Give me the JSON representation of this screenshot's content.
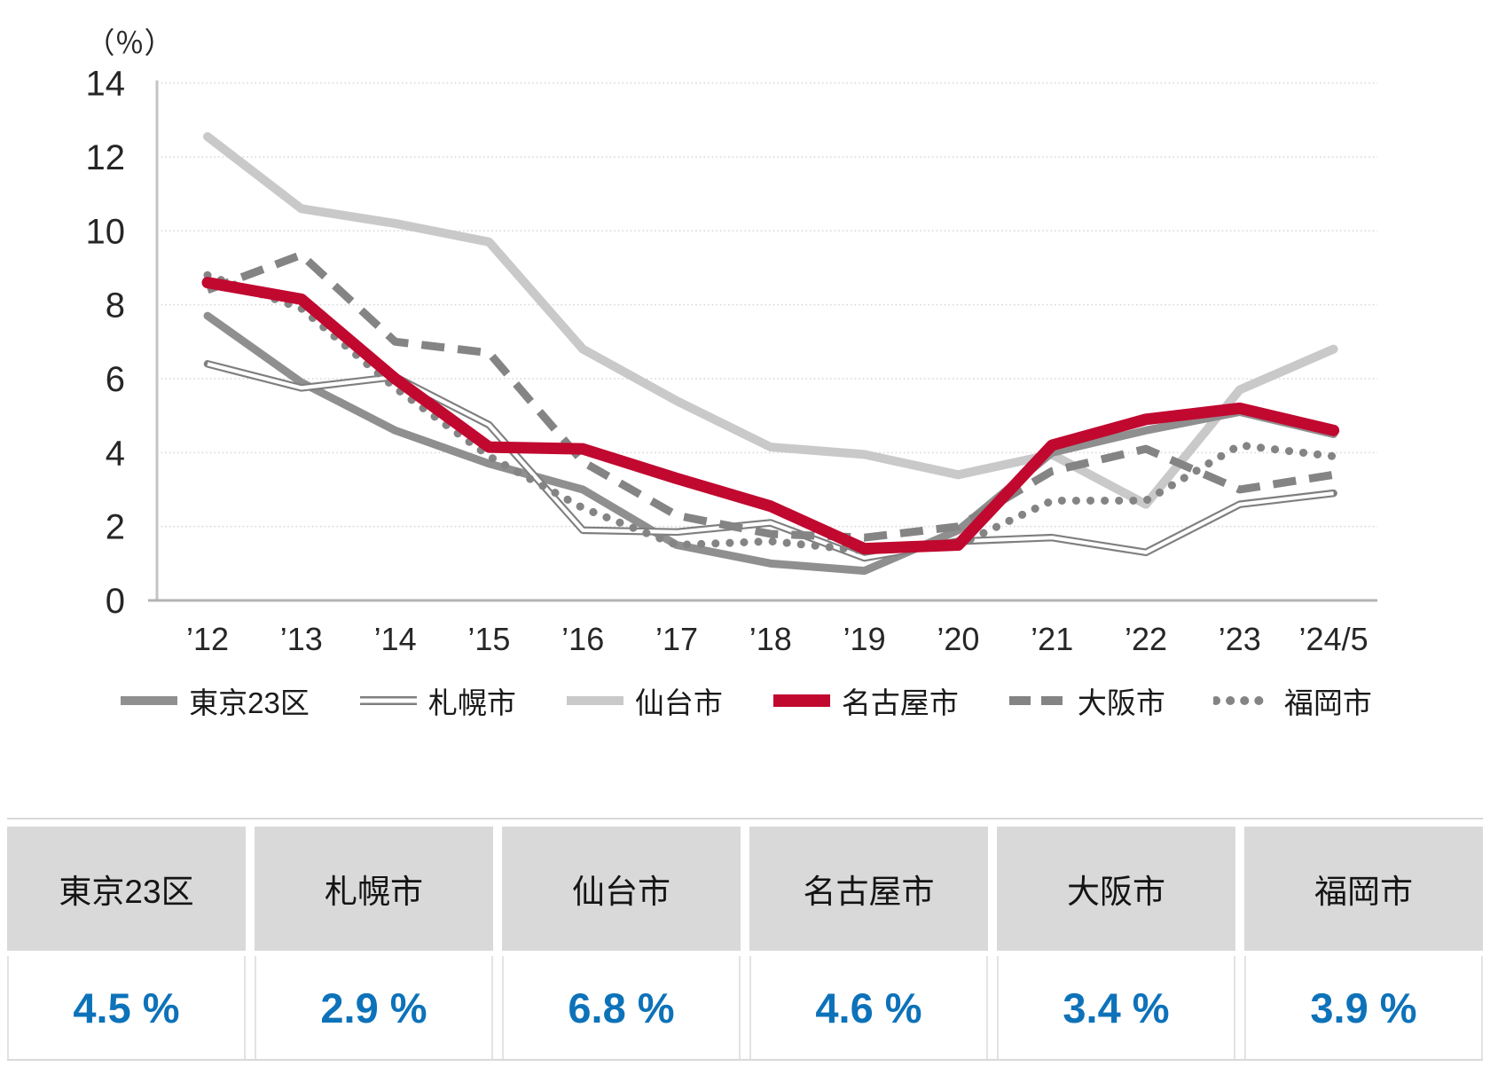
{
  "chart_data": {
    "type": "line",
    "y_axis_title": "（％）",
    "ylim": [
      0,
      14
    ],
    "ytick_step": 2,
    "grid": "horizontal-dotted",
    "legend_position": "bottom",
    "categories": [
      "’12",
      "’13",
      "’14",
      "’15",
      "’16",
      "’17",
      "’18",
      "’19",
      "’20",
      "’21",
      "’22",
      "’23",
      "’24/5"
    ],
    "series": [
      {
        "key": "tokyo23",
        "name": "東京23区",
        "color": "#8f8f8f",
        "pattern": "solid",
        "width": 9,
        "values": [
          7.7,
          5.9,
          4.6,
          3.7,
          3.0,
          1.5,
          1.0,
          0.8,
          1.9,
          4.0,
          4.6,
          5.1,
          4.5
        ]
      },
      {
        "key": "sapporo",
        "name": "札幌市",
        "color": "#7f7f7f",
        "pattern": "double",
        "width": 8.5,
        "values": [
          6.4,
          5.75,
          6.05,
          4.75,
          1.9,
          1.85,
          2.1,
          1.15,
          1.6,
          1.7,
          1.3,
          2.6,
          2.9
        ]
      },
      {
        "key": "sendai",
        "name": "仙台市",
        "color": "#c9c9c9",
        "pattern": "solid",
        "width": 10,
        "values": [
          12.55,
          10.6,
          10.2,
          9.7,
          6.8,
          5.4,
          4.15,
          3.95,
          3.4,
          3.95,
          2.6,
          5.7,
          6.8
        ]
      },
      {
        "key": "nagoya",
        "name": "名古屋市",
        "color": "#c1082f",
        "pattern": "solid",
        "width": 13,
        "values": [
          8.6,
          8.15,
          6.0,
          4.15,
          4.1,
          3.3,
          2.55,
          1.4,
          1.5,
          4.2,
          4.9,
          5.2,
          4.6
        ]
      },
      {
        "key": "osaka",
        "name": "大阪市",
        "color": "#848484",
        "pattern": "dashed",
        "width": 9,
        "values": [
          8.4,
          9.35,
          7.0,
          6.7,
          3.75,
          2.3,
          1.8,
          1.7,
          2.0,
          3.5,
          4.1,
          3.0,
          3.4
        ]
      },
      {
        "key": "fukuoka",
        "name": "福岡市",
        "color": "#848484",
        "pattern": "dotted",
        "width": 9,
        "values": [
          8.8,
          7.9,
          5.75,
          3.9,
          2.5,
          1.5,
          1.6,
          1.35,
          1.5,
          2.7,
          2.7,
          4.2,
          3.9
        ]
      }
    ]
  },
  "table": {
    "columns": [
      {
        "key": "tokyo23",
        "label": "東京23区",
        "value": "4.5 %"
      },
      {
        "key": "sapporo",
        "label": "札幌市",
        "value": "2.9 %"
      },
      {
        "key": "sendai",
        "label": "仙台市",
        "value": "6.8 %"
      },
      {
        "key": "nagoya",
        "label": "名古屋市",
        "value": "4.6 %"
      },
      {
        "key": "osaka",
        "label": "大阪市",
        "value": "3.4 %"
      },
      {
        "key": "fukuoka",
        "label": "福岡市",
        "value": "3.9 %"
      }
    ]
  },
  "colors": {
    "grid": "#d8d8d8",
    "axis": "#b3b3b3",
    "header_bg": "#d9d9d9",
    "value_blue": "#0d72b9",
    "accent_red": "#c1082f"
  }
}
